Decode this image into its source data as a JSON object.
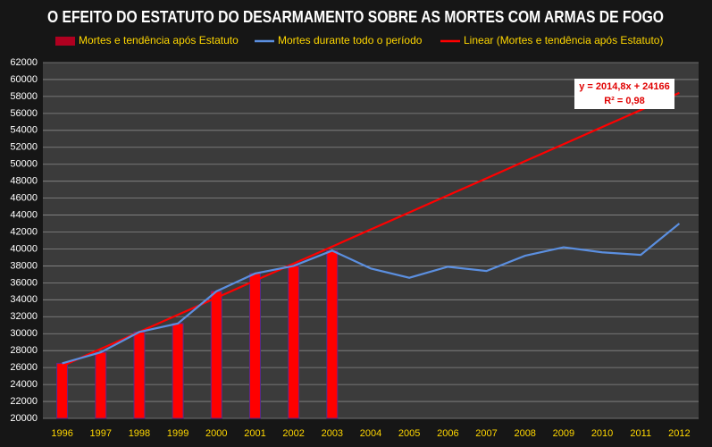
{
  "chart_data": {
    "type": "bar-line",
    "title": "O EFEITO DO ESTATUTO DO DESARMAMENTO SOBRE AS MORTES COM ARMAS DE FOGO",
    "categories": [
      "1996",
      "1997",
      "1998",
      "1999",
      "2000",
      "2001",
      "2002",
      "2003",
      "2004",
      "2005",
      "2006",
      "2007",
      "2008",
      "2009",
      "2010",
      "2011",
      "2012"
    ],
    "series": [
      {
        "name": "Mortes e tendência após Estatuto",
        "kind": "bar",
        "color": "#ff0000",
        "values": [
          26500,
          27800,
          30200,
          31200,
          35000,
          37100,
          38000,
          39800,
          null,
          null,
          null,
          null,
          null,
          null,
          null,
          null,
          null
        ]
      },
      {
        "name": "Mortes durante todo o período",
        "kind": "line",
        "color": "#5b8fe0",
        "values": [
          26500,
          27800,
          30200,
          31200,
          35000,
          37100,
          38000,
          39800,
          37700,
          36600,
          37900,
          37400,
          39200,
          40200,
          39600,
          39300,
          43000
        ]
      },
      {
        "name": "Linear (Mortes e tendência após Estatuto)",
        "kind": "line",
        "color": "#ff0000",
        "values": [
          26180,
          28200,
          30210,
          32230,
          34240,
          36260,
          38270,
          40280,
          42300,
          44310,
          46330,
          48340,
          50360,
          52370,
          54390,
          56400,
          58420
        ]
      }
    ],
    "annotation": [
      "y = 2014,8x + 24166",
      "R² = 0,98"
    ],
    "ylim": [
      20000,
      62000
    ],
    "yticks": [
      20000,
      22000,
      24000,
      26000,
      28000,
      30000,
      32000,
      34000,
      36000,
      38000,
      40000,
      42000,
      44000,
      46000,
      48000,
      50000,
      52000,
      54000,
      56000,
      58000,
      60000,
      62000
    ],
    "grid": true
  }
}
